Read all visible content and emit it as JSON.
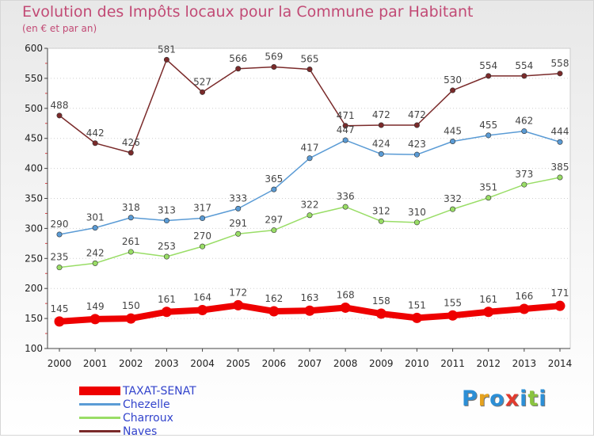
{
  "header": {
    "title": "Evolution des Impôts locaux pour la Commune par Habitant",
    "subtitle": "(en € et par an)"
  },
  "logo": {
    "text": "Proxiti",
    "colors": [
      "#2c8fd6",
      "#e5a21e",
      "#2c8fd6",
      "#e23b2e",
      "#2c8fd6",
      "#8bc43f",
      "#2c8fd6"
    ]
  },
  "chart_data": {
    "type": "line",
    "x": [
      2000,
      2001,
      2002,
      2003,
      2004,
      2005,
      2006,
      2007,
      2008,
      2009,
      2010,
      2011,
      2012,
      2013,
      2014
    ],
    "ylim": [
      100,
      600
    ],
    "yticks": [
      100,
      150,
      200,
      250,
      300,
      350,
      400,
      450,
      500,
      550,
      600
    ],
    "grid": "dotted horizontal",
    "legend_position": "bottom-left",
    "series": [
      {
        "name": "TAXAT-SENAT",
        "color": "#ee0000",
        "width": "thick",
        "values": [
          145,
          149,
          150,
          161,
          164,
          172,
          162,
          163,
          168,
          158,
          151,
          155,
          161,
          166,
          171
        ]
      },
      {
        "name": "Chezelle",
        "color": "#5a9bd5",
        "values": [
          290,
          301,
          318,
          313,
          317,
          333,
          365,
          417,
          447,
          424,
          423,
          445,
          455,
          462,
          444
        ]
      },
      {
        "name": "Charroux",
        "color": "#99dd66",
        "values": [
          235,
          242,
          261,
          253,
          270,
          291,
          297,
          322,
          336,
          312,
          310,
          332,
          351,
          373,
          385
        ]
      },
      {
        "name": "Naves",
        "color": "#7a2a2a",
        "values": [
          488,
          442,
          426,
          581,
          527,
          566,
          569,
          565,
          471,
          472,
          472,
          530,
          554,
          554,
          558
        ]
      }
    ]
  }
}
